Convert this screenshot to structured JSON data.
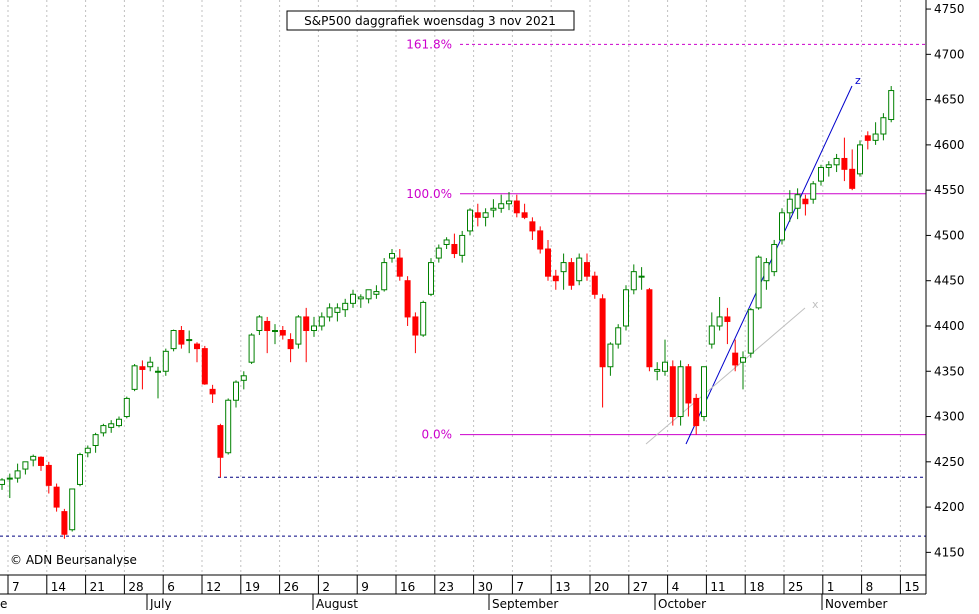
{
  "chart_data": {
    "type": "candlestick",
    "title": "S&P500 daggrafiek woensdag 3 nov 2021",
    "copyright": "© ADN Beursanalyse",
    "ylim": [
      4125,
      4760
    ],
    "y_ticks": [
      4150,
      4200,
      4250,
      4300,
      4350,
      4400,
      4450,
      4500,
      4550,
      4600,
      4650,
      4700,
      4750
    ],
    "x_day_ticks": [
      "7",
      "14",
      "21",
      "28",
      "6",
      "12",
      "19",
      "26",
      "2",
      "9",
      "16",
      "23",
      "30",
      "7",
      "13",
      "20",
      "27",
      "4",
      "11",
      "18",
      "25",
      "1",
      "8",
      "15"
    ],
    "x_month_labels": [
      "e",
      "July",
      "August",
      "September",
      "October",
      "November"
    ],
    "fib_levels": [
      {
        "label": "161.8%",
        "value": 4711
      },
      {
        "label": "100.0%",
        "value": 4546
      },
      {
        "label": "0.0%",
        "value": 4280
      }
    ],
    "support_levels": [
      4233,
      4168
    ],
    "trendline_labels": {
      "up": "z",
      "minor": "x"
    },
    "colors": {
      "up": "#008000",
      "down": "#ff0000",
      "fib": "#cc00cc",
      "support": "#000080",
      "trend": "#0000cc",
      "minor_trend": "#c0c0c0",
      "grid": "#c0c0c0"
    },
    "candles": [
      [
        4225,
        4232,
        4219,
        4230
      ],
      [
        4231,
        4237,
        4210,
        4232
      ],
      [
        4232,
        4248,
        4227,
        4240
      ],
      [
        4242,
        4250,
        4236,
        4250
      ],
      [
        4252,
        4258,
        4245,
        4256
      ],
      [
        4255,
        4256,
        4240,
        4246
      ],
      [
        4246,
        4250,
        4215,
        4224
      ],
      [
        4222,
        4226,
        4195,
        4200
      ],
      [
        4195,
        4198,
        4165,
        4170
      ],
      [
        4175,
        4220,
        4173,
        4220
      ],
      [
        4225,
        4260,
        4223,
        4258
      ],
      [
        4260,
        4268,
        4255,
        4265
      ],
      [
        4268,
        4282,
        4260,
        4280
      ],
      [
        4282,
        4292,
        4278,
        4290
      ],
      [
        4288,
        4296,
        4282,
        4292
      ],
      [
        4290,
        4300,
        4288,
        4297
      ],
      [
        4300,
        4322,
        4298,
        4320
      ],
      [
        4330,
        4358,
        4328,
        4356
      ],
      [
        4355,
        4362,
        4330,
        4352
      ],
      [
        4355,
        4366,
        4350,
        4360
      ],
      [
        4350,
        4355,
        4320,
        4350
      ],
      [
        4350,
        4375,
        4345,
        4372
      ],
      [
        4375,
        4396,
        4372,
        4395
      ],
      [
        4395,
        4400,
        4375,
        4380
      ],
      [
        4385,
        4395,
        4370,
        4385
      ],
      [
        4380,
        4382,
        4360,
        4375
      ],
      [
        4375,
        4378,
        4335,
        4336
      ],
      [
        4330,
        4335,
        4315,
        4325
      ],
      [
        4290,
        4292,
        4233,
        4255
      ],
      [
        4260,
        4320,
        4258,
        4318
      ],
      [
        4318,
        4340,
        4310,
        4338
      ],
      [
        4340,
        4350,
        4330,
        4345
      ],
      [
        4360,
        4392,
        4358,
        4390
      ],
      [
        4395,
        4412,
        4390,
        4410
      ],
      [
        4405,
        4410,
        4370,
        4395
      ],
      [
        4395,
        4402,
        4380,
        4395
      ],
      [
        4395,
        4400,
        4385,
        4390
      ],
      [
        4385,
        4392,
        4360,
        4375
      ],
      [
        4380,
        4412,
        4375,
        4410
      ],
      [
        4410,
        4420,
        4360,
        4395
      ],
      [
        4395,
        4410,
        4388,
        4400
      ],
      [
        4400,
        4415,
        4395,
        4410
      ],
      [
        4410,
        4425,
        4405,
        4420
      ],
      [
        4415,
        4425,
        4405,
        4420
      ],
      [
        4418,
        4430,
        4410,
        4425
      ],
      [
        4425,
        4440,
        4420,
        4435
      ],
      [
        4430,
        4435,
        4420,
        4432
      ],
      [
        4430,
        4440,
        4425,
        4440
      ],
      [
        4435,
        4445,
        4430,
        4438
      ],
      [
        4440,
        4475,
        4438,
        4470
      ],
      [
        4475,
        4485,
        4470,
        4480
      ],
      [
        4475,
        4485,
        4450,
        4455
      ],
      [
        4450,
        4455,
        4400,
        4410
      ],
      [
        4410,
        4415,
        4370,
        4390
      ],
      [
        4390,
        4428,
        4388,
        4426
      ],
      [
        4435,
        4475,
        4433,
        4470
      ],
      [
        4475,
        4490,
        4470,
        4486
      ],
      [
        4490,
        4498,
        4485,
        4495
      ],
      [
        4490,
        4502,
        4475,
        4480
      ],
      [
        4478,
        4505,
        4470,
        4500
      ],
      [
        4505,
        4530,
        4500,
        4528
      ],
      [
        4525,
        4535,
        4510,
        4520
      ],
      [
        4520,
        4530,
        4510,
        4525
      ],
      [
        4528,
        4540,
        4520,
        4530
      ],
      [
        4530,
        4545,
        4525,
        4535
      ],
      [
        4535,
        4548,
        4528,
        4538
      ],
      [
        4538,
        4545,
        4520,
        4525
      ],
      [
        4525,
        4535,
        4518,
        4520
      ],
      [
        4515,
        4520,
        4495,
        4505
      ],
      [
        4505,
        4510,
        4480,
        4485
      ],
      [
        4485,
        4495,
        4450,
        4455
      ],
      [
        4455,
        4462,
        4440,
        4450
      ],
      [
        4460,
        4480,
        4440,
        4470
      ],
      [
        4470,
        4475,
        4440,
        4445
      ],
      [
        4450,
        4480,
        4445,
        4475
      ],
      [
        4470,
        4480,
        4450,
        4455
      ],
      [
        4455,
        4460,
        4430,
        4435
      ],
      [
        4430,
        4435,
        4310,
        4355
      ],
      [
        4355,
        4382,
        4345,
        4380
      ],
      [
        4380,
        4402,
        4375,
        4398
      ],
      [
        4400,
        4445,
        4395,
        4440
      ],
      [
        4440,
        4468,
        4435,
        4460
      ],
      [
        4455,
        4465,
        4440,
        4455
      ],
      [
        4440,
        4442,
        4350,
        4355
      ],
      [
        4350,
        4360,
        4340,
        4352
      ],
      [
        4350,
        4385,
        4345,
        4360
      ],
      [
        4355,
        4362,
        4290,
        4300
      ],
      [
        4300,
        4362,
        4290,
        4355
      ],
      [
        4355,
        4358,
        4300,
        4315
      ],
      [
        4320,
        4325,
        4280,
        4290
      ],
      [
        4300,
        4355,
        4295,
        4355
      ],
      [
        4380,
        4415,
        4375,
        4400
      ],
      [
        4400,
        4432,
        4395,
        4410
      ],
      [
        4410,
        4420,
        4380,
        4405
      ],
      [
        4370,
        4385,
        4350,
        4357
      ],
      [
        4360,
        4372,
        4330,
        4365
      ],
      [
        4370,
        4420,
        4365,
        4418
      ],
      [
        4420,
        4478,
        4418,
        4476
      ],
      [
        4450,
        4475,
        4440,
        4470
      ],
      [
        4460,
        4495,
        4455,
        4490
      ],
      [
        4495,
        4530,
        4490,
        4525
      ],
      [
        4525,
        4550,
        4515,
        4540
      ],
      [
        4530,
        4552,
        4518,
        4545
      ],
      [
        4540,
        4545,
        4522,
        4535
      ],
      [
        4540,
        4560,
        4535,
        4557
      ],
      [
        4560,
        4578,
        4555,
        4575
      ],
      [
        4575,
        4582,
        4565,
        4578
      ],
      [
        4578,
        4590,
        4570,
        4585
      ],
      [
        4585,
        4608,
        4560,
        4573
      ],
      [
        4573,
        4595,
        4550,
        4552
      ],
      [
        4568,
        4605,
        4565,
        4600
      ],
      [
        4610,
        4615,
        4595,
        4605
      ],
      [
        4605,
        4625,
        4600,
        4612
      ],
      [
        4612,
        4635,
        4605,
        4630
      ],
      [
        4628,
        4665,
        4625,
        4660
      ]
    ]
  }
}
